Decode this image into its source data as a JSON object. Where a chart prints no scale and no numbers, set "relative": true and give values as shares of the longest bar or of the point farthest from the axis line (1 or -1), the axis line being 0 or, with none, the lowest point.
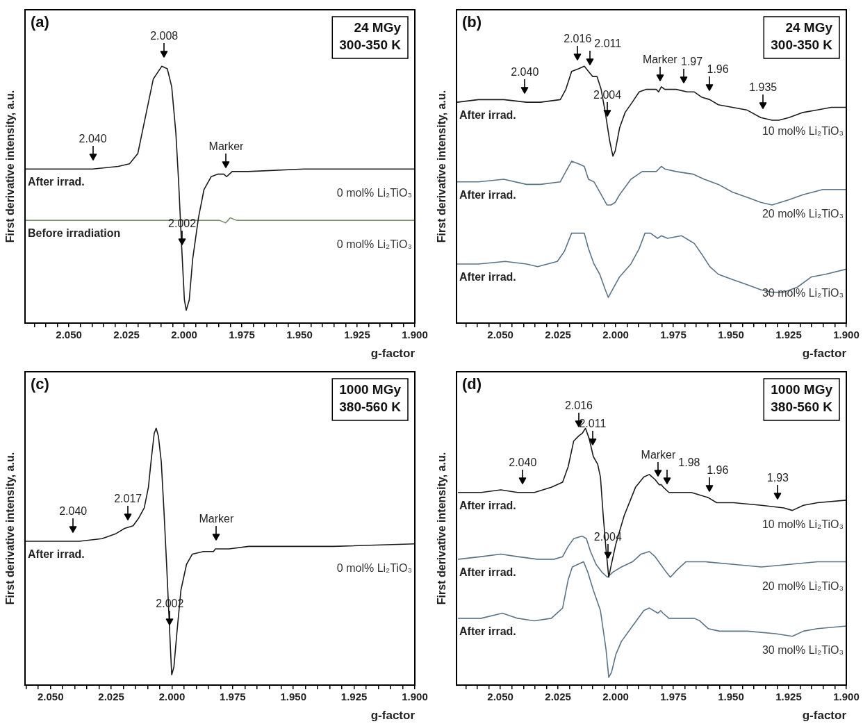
{
  "chart_data": [
    {
      "type": "line",
      "title": "(a)",
      "subtitle": "24 MGy\n300-350 K",
      "xlabel": "g-factor",
      "ylabel": "First derivative intensity, a.u.",
      "relative": true,
      "xlim": [
        2.069,
        1.9
      ],
      "xticks": [
        {
          "value": 2.065,
          "label": null
        },
        {
          "value": 2.06,
          "label": null
        },
        {
          "value": 2.055,
          "label": null
        },
        {
          "value": 2.05,
          "label": "2.050"
        },
        {
          "value": 2.045,
          "label": null
        },
        {
          "value": 2.04,
          "label": null
        },
        {
          "value": 2.035,
          "label": null
        },
        {
          "value": 2.03,
          "label": null
        },
        {
          "value": 2.025,
          "label": "2.025"
        },
        {
          "value": 2.02,
          "label": null
        },
        {
          "value": 2.015,
          "label": null
        },
        {
          "value": 2.01,
          "label": null
        },
        {
          "value": 2.005,
          "label": null
        },
        {
          "value": 2.0,
          "label": "2.000"
        },
        {
          "value": 1.995,
          "label": null
        },
        {
          "value": 1.99,
          "label": null
        },
        {
          "value": 1.985,
          "label": null
        },
        {
          "value": 1.98,
          "label": null
        },
        {
          "value": 1.975,
          "label": "1.975"
        },
        {
          "value": 1.97,
          "label": null
        },
        {
          "value": 1.965,
          "label": null
        },
        {
          "value": 1.96,
          "label": null
        },
        {
          "value": 1.955,
          "label": null
        },
        {
          "value": 1.95,
          "label": "1.950"
        },
        {
          "value": 1.945,
          "label": null
        },
        {
          "value": 1.94,
          "label": null
        },
        {
          "value": 1.935,
          "label": null
        },
        {
          "value": 1.93,
          "label": null
        },
        {
          "value": 1.925,
          "label": "1.925"
        },
        {
          "value": 1.92,
          "label": null
        },
        {
          "value": 1.915,
          "label": null
        },
        {
          "value": 1.91,
          "label": null
        },
        {
          "value": 1.905,
          "label": null
        },
        {
          "value": 1.9,
          "label": "1.900"
        }
      ],
      "series": [
        {
          "name": "0 mol% Li₂TiO₃",
          "color": "#1a1a1a",
          "x": [
            2.0687,
            2.0512,
            2.0396,
            2.0286,
            2.0237,
            2.0201,
            2.0164,
            2.0134,
            2.0097,
            2.0073,
            2.0054,
            2.0036,
            2.0024,
            2.0011,
            1.9999,
            1.9991,
            1.9978,
            1.9963,
            1.9938,
            1.9914,
            1.9883,
            1.9853,
            1.9828,
            1.9816,
            1.9804,
            1.9792,
            1.9724,
            1.948,
            1.9236,
            1.9
          ],
          "values": [
            0.6,
            0.6,
            0.6,
            0.61,
            0.62,
            0.66,
            0.82,
            0.95,
            1.0,
            0.99,
            0.92,
            0.74,
            0.55,
            0.3,
            0.09,
            0.05,
            0.09,
            0.25,
            0.41,
            0.52,
            0.57,
            0.58,
            0.58,
            0.57,
            0.58,
            0.59,
            0.59,
            0.6,
            0.6,
            0.6
          ]
        },
        {
          "name": "0 mol% Li₂TiO₃",
          "color": "#7d8f6e",
          "x": [
            2.0687,
            1.9847,
            1.982,
            1.981,
            1.98,
            1.9773,
            1.9
          ],
          "values": [
            0.4,
            0.4,
            0.39,
            0.4,
            0.41,
            0.4,
            0.4
          ]
        }
      ],
      "annotations": [
        "After irrad.",
        "Before irradiation",
        {
          "text": "2.040",
          "x": 2.0396,
          "y": 0.6
        },
        {
          "text": "2.008",
          "x": 2.0087,
          "y": 1.0
        },
        {
          "text": "2.002",
          "x": 2.0009,
          "y": 0.27
        },
        {
          "text": "Marker",
          "x": 1.9818,
          "y": 0.57
        }
      ]
    },
    {
      "type": "line",
      "title": "(b)",
      "subtitle": "24 MGy\n300-350 K",
      "xlabel": "g-factor",
      "ylabel": "First derivative intensity, a.u.",
      "relative": true,
      "xlim": [
        2.069,
        1.9
      ],
      "xticks": [
        {
          "value": 2.065,
          "label": null
        },
        {
          "value": 2.06,
          "label": null
        },
        {
          "value": 2.055,
          "label": null
        },
        {
          "value": 2.05,
          "label": "2.050"
        },
        {
          "value": 2.045,
          "label": null
        },
        {
          "value": 2.04,
          "label": null
        },
        {
          "value": 2.035,
          "label": null
        },
        {
          "value": 2.03,
          "label": null
        },
        {
          "value": 2.025,
          "label": "2.025"
        },
        {
          "value": 2.02,
          "label": null
        },
        {
          "value": 2.015,
          "label": null
        },
        {
          "value": 2.01,
          "label": null
        },
        {
          "value": 2.005,
          "label": null
        },
        {
          "value": 2.0,
          "label": "2.000"
        },
        {
          "value": 1.995,
          "label": null
        },
        {
          "value": 1.99,
          "label": null
        },
        {
          "value": 1.985,
          "label": null
        },
        {
          "value": 1.98,
          "label": null
        },
        {
          "value": 1.975,
          "label": "1.975"
        },
        {
          "value": 1.97,
          "label": null
        },
        {
          "value": 1.965,
          "label": null
        },
        {
          "value": 1.96,
          "label": null
        },
        {
          "value": 1.955,
          "label": null
        },
        {
          "value": 1.95,
          "label": "1.950"
        },
        {
          "value": 1.945,
          "label": null
        },
        {
          "value": 1.94,
          "label": null
        },
        {
          "value": 1.935,
          "label": null
        },
        {
          "value": 1.93,
          "label": null
        },
        {
          "value": 1.925,
          "label": "1.925"
        },
        {
          "value": 1.92,
          "label": null
        },
        {
          "value": 1.915,
          "label": null
        },
        {
          "value": 1.91,
          "label": null
        },
        {
          "value": 1.905,
          "label": null
        },
        {
          "value": 1.9,
          "label": "1.900"
        }
      ],
      "series": [
        {
          "name": "10 mol% Li₂TiO₃",
          "color": "#1a1a1a",
          "x": [
            2.0687,
            2.0595,
            2.0485,
            2.0387,
            2.0326,
            2.024,
            2.0216,
            2.0191,
            2.0161,
            2.0136,
            2.0118,
            2.01,
            2.0081,
            2.0063,
            2.0045,
            2.0026,
            2.0012,
            2.0002,
            1.9983,
            1.9959,
            1.9928,
            1.9898,
            1.9867,
            1.9824,
            1.9814,
            1.9802,
            1.9787,
            1.9738,
            1.969,
            1.9659,
            1.9628,
            1.9592,
            1.9555,
            1.9494,
            1.9432,
            1.9371,
            1.9322,
            1.9292,
            1.9249,
            1.9188,
            1.9126,
            1.9065,
            1.9
          ],
          "values": [
            0.86,
            0.87,
            0.87,
            0.86,
            0.86,
            0.87,
            0.91,
            0.98,
            0.99,
            1.0,
            0.98,
            0.96,
            0.96,
            0.91,
            0.82,
            0.71,
            0.65,
            0.67,
            0.76,
            0.82,
            0.86,
            0.9,
            0.91,
            0.91,
            0.9,
            0.92,
            0.91,
            0.91,
            0.9,
            0.9,
            0.88,
            0.87,
            0.85,
            0.84,
            0.83,
            0.8,
            0.79,
            0.79,
            0.8,
            0.82,
            0.83,
            0.84,
            0.84
          ]
        },
        {
          "name": "20 mol% Li₂TiO₃",
          "color": "#5b7386",
          "x": [
            2.0687,
            2.0595,
            2.0485,
            2.0387,
            2.0326,
            2.024,
            2.0216,
            2.0191,
            2.0161,
            2.0136,
            2.0118,
            2.0094,
            2.0069,
            2.0038,
            2.002,
            2.0002,
            1.9983,
            1.9934,
            1.9885,
            1.9824,
            1.9802,
            1.9787,
            1.9738,
            1.9665,
            1.9616,
            1.9555,
            1.9494,
            1.9432,
            1.9371,
            1.9322,
            1.9249,
            1.9188,
            1.9102,
            1.9
          ],
          "values": [
            0.55,
            0.55,
            0.56,
            0.54,
            0.54,
            0.55,
            0.59,
            0.63,
            0.62,
            0.61,
            0.56,
            0.55,
            0.51,
            0.46,
            0.46,
            0.47,
            0.5,
            0.56,
            0.59,
            0.59,
            0.61,
            0.6,
            0.59,
            0.58,
            0.56,
            0.54,
            0.51,
            0.49,
            0.47,
            0.46,
            0.48,
            0.5,
            0.52,
            0.52
          ]
        },
        {
          "name": "30 mol% Li₂TiO₃",
          "color": "#5b7386",
          "x": [
            2.0687,
            2.0595,
            2.0479,
            2.0387,
            2.0338,
            2.0253,
            2.0222,
            2.0191,
            2.0161,
            2.0136,
            2.0118,
            2.0094,
            2.0069,
            2.0045,
            2.0032,
            2.002,
            1.9983,
            1.9934,
            1.9898,
            1.9873,
            1.9849,
            1.9818,
            1.9802,
            1.9775,
            1.9714,
            1.9677,
            1.9659,
            1.9628,
            1.9592,
            1.9555,
            1.9494,
            1.9432,
            1.9371,
            1.9322,
            1.9273,
            1.9212,
            1.9151,
            1.909,
            1.9
          ],
          "values": [
            0.23,
            0.23,
            0.24,
            0.23,
            0.22,
            0.24,
            0.28,
            0.35,
            0.35,
            0.35,
            0.29,
            0.23,
            0.19,
            0.13,
            0.1,
            0.12,
            0.18,
            0.23,
            0.29,
            0.35,
            0.35,
            0.33,
            0.34,
            0.33,
            0.34,
            0.32,
            0.31,
            0.27,
            0.22,
            0.19,
            0.17,
            0.15,
            0.13,
            0.12,
            0.12,
            0.14,
            0.18,
            0.19,
            0.21
          ]
        }
      ],
      "annotations": [
        "After irrad.",
        "After irrad.",
        "After irrad.",
        {
          "text": "2.040",
          "x": 2.0394,
          "y": 0.86
        },
        {
          "text": "2.016",
          "x": 2.0165,
          "y": 0.99
        },
        {
          "text": "2.011",
          "x": 2.0113,
          "y": 0.97
        },
        {
          "text": "2.004",
          "x": 2.0036,
          "y": 0.77
        },
        {
          "text": "Marker",
          "x": 1.9808,
          "y": 0.91
        },
        {
          "text": "1.97",
          "x": 1.9705,
          "y": 0.9
        },
        {
          "text": "1.96",
          "x": 1.9592,
          "y": 0.87
        },
        {
          "text": "1.935",
          "x": 1.9361,
          "y": 0.8
        }
      ]
    },
    {
      "type": "line",
      "title": "(c)",
      "subtitle": "1000 MGy\n380-560 K",
      "xlabel": "g-factor",
      "ylabel": "First derivative intensity, a.u.",
      "relative": true,
      "xlim": [
        2.0605,
        1.9
      ],
      "xticks": [
        {
          "value": 2.06,
          "label": null
        },
        {
          "value": 2.055,
          "label": null
        },
        {
          "value": 2.05,
          "label": "2.050"
        },
        {
          "value": 2.045,
          "label": null
        },
        {
          "value": 2.04,
          "label": null
        },
        {
          "value": 2.035,
          "label": null
        },
        {
          "value": 2.03,
          "label": null
        },
        {
          "value": 2.025,
          "label": "2.025"
        },
        {
          "value": 2.02,
          "label": null
        },
        {
          "value": 2.015,
          "label": null
        },
        {
          "value": 2.01,
          "label": null
        },
        {
          "value": 2.005,
          "label": null
        },
        {
          "value": 2.0,
          "label": "2.000"
        },
        {
          "value": 1.995,
          "label": null
        },
        {
          "value": 1.99,
          "label": null
        },
        {
          "value": 1.985,
          "label": null
        },
        {
          "value": 1.98,
          "label": null
        },
        {
          "value": 1.975,
          "label": "1.975"
        },
        {
          "value": 1.97,
          "label": null
        },
        {
          "value": 1.965,
          "label": null
        },
        {
          "value": 1.96,
          "label": null
        },
        {
          "value": 1.955,
          "label": null
        },
        {
          "value": 1.95,
          "label": "1.950"
        },
        {
          "value": 1.945,
          "label": null
        },
        {
          "value": 1.94,
          "label": null
        },
        {
          "value": 1.935,
          "label": null
        },
        {
          "value": 1.93,
          "label": null
        },
        {
          "value": 1.925,
          "label": "1.925"
        },
        {
          "value": 1.92,
          "label": null
        },
        {
          "value": 1.915,
          "label": null
        },
        {
          "value": 1.91,
          "label": null
        },
        {
          "value": 1.905,
          "label": null
        },
        {
          "value": 1.9,
          "label": "1.900"
        }
      ],
      "series": [
        {
          "name": "0 mol% Li₂TiO₃",
          "color": "#1a1a1a",
          "x": [
            2.0605,
            2.0498,
            2.0381,
            2.0288,
            2.023,
            2.0195,
            2.016,
            2.0137,
            2.0114,
            2.0097,
            2.0085,
            2.0073,
            2.0065,
            2.0056,
            2.0044,
            2.0033,
            2.0021,
            2.0009,
            2.0001,
            1.9992,
            1.998,
            1.9963,
            1.994,
            1.9916,
            1.987,
            1.9829,
            1.9821,
            1.9809,
            1.9765,
            1.9684,
            1.9567,
            1.9474,
            1.9335,
            1.9
          ],
          "values": [
            0.56,
            0.56,
            0.56,
            0.57,
            0.59,
            0.61,
            0.62,
            0.65,
            0.69,
            0.77,
            0.88,
            0.98,
            1.0,
            0.97,
            0.87,
            0.68,
            0.45,
            0.2,
            0.04,
            0.07,
            0.2,
            0.37,
            0.47,
            0.51,
            0.52,
            0.52,
            0.53,
            0.53,
            0.53,
            0.54,
            0.54,
            0.54,
            0.54,
            0.55
          ]
        }
      ],
      "annotations": [
        "After irrad.",
        {
          "text": "2.040",
          "x": 2.0407,
          "y": 0.56
        },
        {
          "text": "2.017",
          "x": 2.0181,
          "y": 0.61
        },
        {
          "text": "2.002",
          "x": 2.0009,
          "y": 0.2
        },
        {
          "text": "Marker",
          "x": 1.9817,
          "y": 0.53
        }
      ]
    },
    {
      "type": "line",
      "title": "(d)",
      "subtitle": "1000 MGy\n380-560 K",
      "xlabel": "g-factor",
      "ylabel": "First derivative intensity, a.u.",
      "relative": true,
      "xlim": [
        2.069,
        1.9
      ],
      "xticks": [
        {
          "value": 2.065,
          "label": null
        },
        {
          "value": 2.06,
          "label": null
        },
        {
          "value": 2.055,
          "label": null
        },
        {
          "value": 2.05,
          "label": "2.050"
        },
        {
          "value": 2.045,
          "label": null
        },
        {
          "value": 2.04,
          "label": null
        },
        {
          "value": 2.035,
          "label": null
        },
        {
          "value": 2.03,
          "label": null
        },
        {
          "value": 2.025,
          "label": "2.025"
        },
        {
          "value": 2.02,
          "label": null
        },
        {
          "value": 2.015,
          "label": null
        },
        {
          "value": 2.01,
          "label": null
        },
        {
          "value": 2.005,
          "label": null
        },
        {
          "value": 2.0,
          "label": "2.000"
        },
        {
          "value": 1.995,
          "label": null
        },
        {
          "value": 1.99,
          "label": null
        },
        {
          "value": 1.985,
          "label": null
        },
        {
          "value": 1.98,
          "label": null
        },
        {
          "value": 1.975,
          "label": "1.975"
        },
        {
          "value": 1.97,
          "label": null
        },
        {
          "value": 1.965,
          "label": null
        },
        {
          "value": 1.96,
          "label": null
        },
        {
          "value": 1.955,
          "label": null
        },
        {
          "value": 1.95,
          "label": "1.950"
        },
        {
          "value": 1.945,
          "label": null
        },
        {
          "value": 1.94,
          "label": null
        },
        {
          "value": 1.935,
          "label": null
        },
        {
          "value": 1.93,
          "label": null
        },
        {
          "value": 1.925,
          "label": "1.925"
        },
        {
          "value": 1.92,
          "label": null
        },
        {
          "value": 1.915,
          "label": null
        },
        {
          "value": 1.91,
          "label": null
        },
        {
          "value": 1.905,
          "label": null
        },
        {
          "value": 1.9,
          "label": "1.900"
        }
      ],
      "series": [
        {
          "name": "10 mol% Li₂TiO₃",
          "color": "#1a1a1a",
          "x": [
            2.0682,
            2.0583,
            2.0498,
            2.0425,
            2.0352,
            2.0279,
            2.023,
            2.0206,
            2.0182,
            2.016,
            2.0145,
            2.0131,
            2.0115,
            2.0097,
            2.0078,
            2.0066,
            2.0054,
            2.0042,
            2.003,
            2.0021,
            1.9999,
            1.9963,
            1.9914,
            1.9878,
            1.9854,
            1.9829,
            1.9811,
            1.9802,
            1.9793,
            1.9769,
            1.9732,
            1.9672,
            1.9635,
            1.9599,
            1.9562,
            1.9489,
            1.9368,
            1.9271,
            1.9234,
            1.9186,
            1.9125,
            1.9
          ],
          "values": [
            0.75,
            0.75,
            0.76,
            0.75,
            0.75,
            0.77,
            0.79,
            0.85,
            0.95,
            0.97,
            0.98,
            1.0,
            0.96,
            0.89,
            0.86,
            0.81,
            0.66,
            0.53,
            0.42,
            0.46,
            0.55,
            0.66,
            0.77,
            0.81,
            0.82,
            0.8,
            0.78,
            0.78,
            0.77,
            0.75,
            0.75,
            0.75,
            0.74,
            0.73,
            0.71,
            0.71,
            0.7,
            0.69,
            0.68,
            0.7,
            0.71,
            0.72
          ]
        },
        {
          "name": "20 mol% Li₂TiO₃",
          "color": "#5b7386",
          "x": [
            2.0682,
            2.0583,
            2.0498,
            2.0425,
            2.034,
            2.0267,
            2.023,
            2.0206,
            2.0182,
            2.0145,
            2.0127,
            2.0109,
            2.0085,
            2.006,
            2.0036,
            2.0012,
            1.9975,
            1.9927,
            1.989,
            1.9854,
            1.9829,
            1.9805,
            1.9781,
            1.9763,
            1.9732,
            1.9696,
            1.9659,
            1.9611,
            1.9489,
            1.9368,
            1.9246,
            1.9125,
            1.9
          ],
          "values": [
            0.49,
            0.5,
            0.51,
            0.5,
            0.49,
            0.49,
            0.5,
            0.54,
            0.57,
            0.58,
            0.57,
            0.52,
            0.47,
            0.44,
            0.42,
            0.44,
            0.46,
            0.48,
            0.51,
            0.52,
            0.5,
            0.47,
            0.44,
            0.42,
            0.45,
            0.48,
            0.48,
            0.48,
            0.47,
            0.46,
            0.47,
            0.48,
            0.48
          ]
        },
        {
          "name": "30 mol% Li₂TiO₃",
          "color": "#5b7386",
          "x": [
            2.0682,
            2.0583,
            2.0491,
            2.0425,
            2.0352,
            2.0279,
            2.023,
            2.0206,
            2.0188,
            2.0164,
            2.0139,
            2.0121,
            2.0097,
            2.0066,
            2.0042,
            2.003,
            2.0018,
            1.9999,
            1.9975,
            1.9927,
            1.9878,
            1.9854,
            1.9817,
            1.9805,
            1.9795,
            1.9769,
            1.9732,
            1.9659,
            1.9635,
            1.9599,
            1.955,
            1.9429,
            1.9307,
            1.9234,
            1.9186,
            1.9125,
            1.9
          ],
          "values": [
            0.26,
            0.26,
            0.28,
            0.26,
            0.25,
            0.26,
            0.3,
            0.41,
            0.46,
            0.47,
            0.48,
            0.44,
            0.37,
            0.29,
            0.14,
            0.03,
            0.05,
            0.12,
            0.17,
            0.23,
            0.29,
            0.3,
            0.28,
            0.29,
            0.28,
            0.26,
            0.26,
            0.26,
            0.25,
            0.22,
            0.21,
            0.21,
            0.2,
            0.19,
            0.21,
            0.22,
            0.23
          ]
        }
      ],
      "annotations": [
        "After irrad.",
        "After irrad.",
        "After irrad.",
        {
          "text": "2.040",
          "x": 2.0403,
          "y": 0.75
        },
        {
          "text": "2.016",
          "x": 2.016,
          "y": 0.97
        },
        {
          "text": "2.011",
          "x": 2.01,
          "y": 0.9
        },
        {
          "text": "2.004",
          "x": 2.0034,
          "y": 0.46
        },
        {
          "text": "Marker",
          "x": 1.9815,
          "y": 0.78
        },
        {
          "text": "1.98",
          "x": 1.9777,
          "y": 0.75
        },
        {
          "text": "1.96",
          "x": 1.9593,
          "y": 0.72
        },
        {
          "text": "1.93",
          "x": 1.9297,
          "y": 0.69
        }
      ]
    }
  ]
}
